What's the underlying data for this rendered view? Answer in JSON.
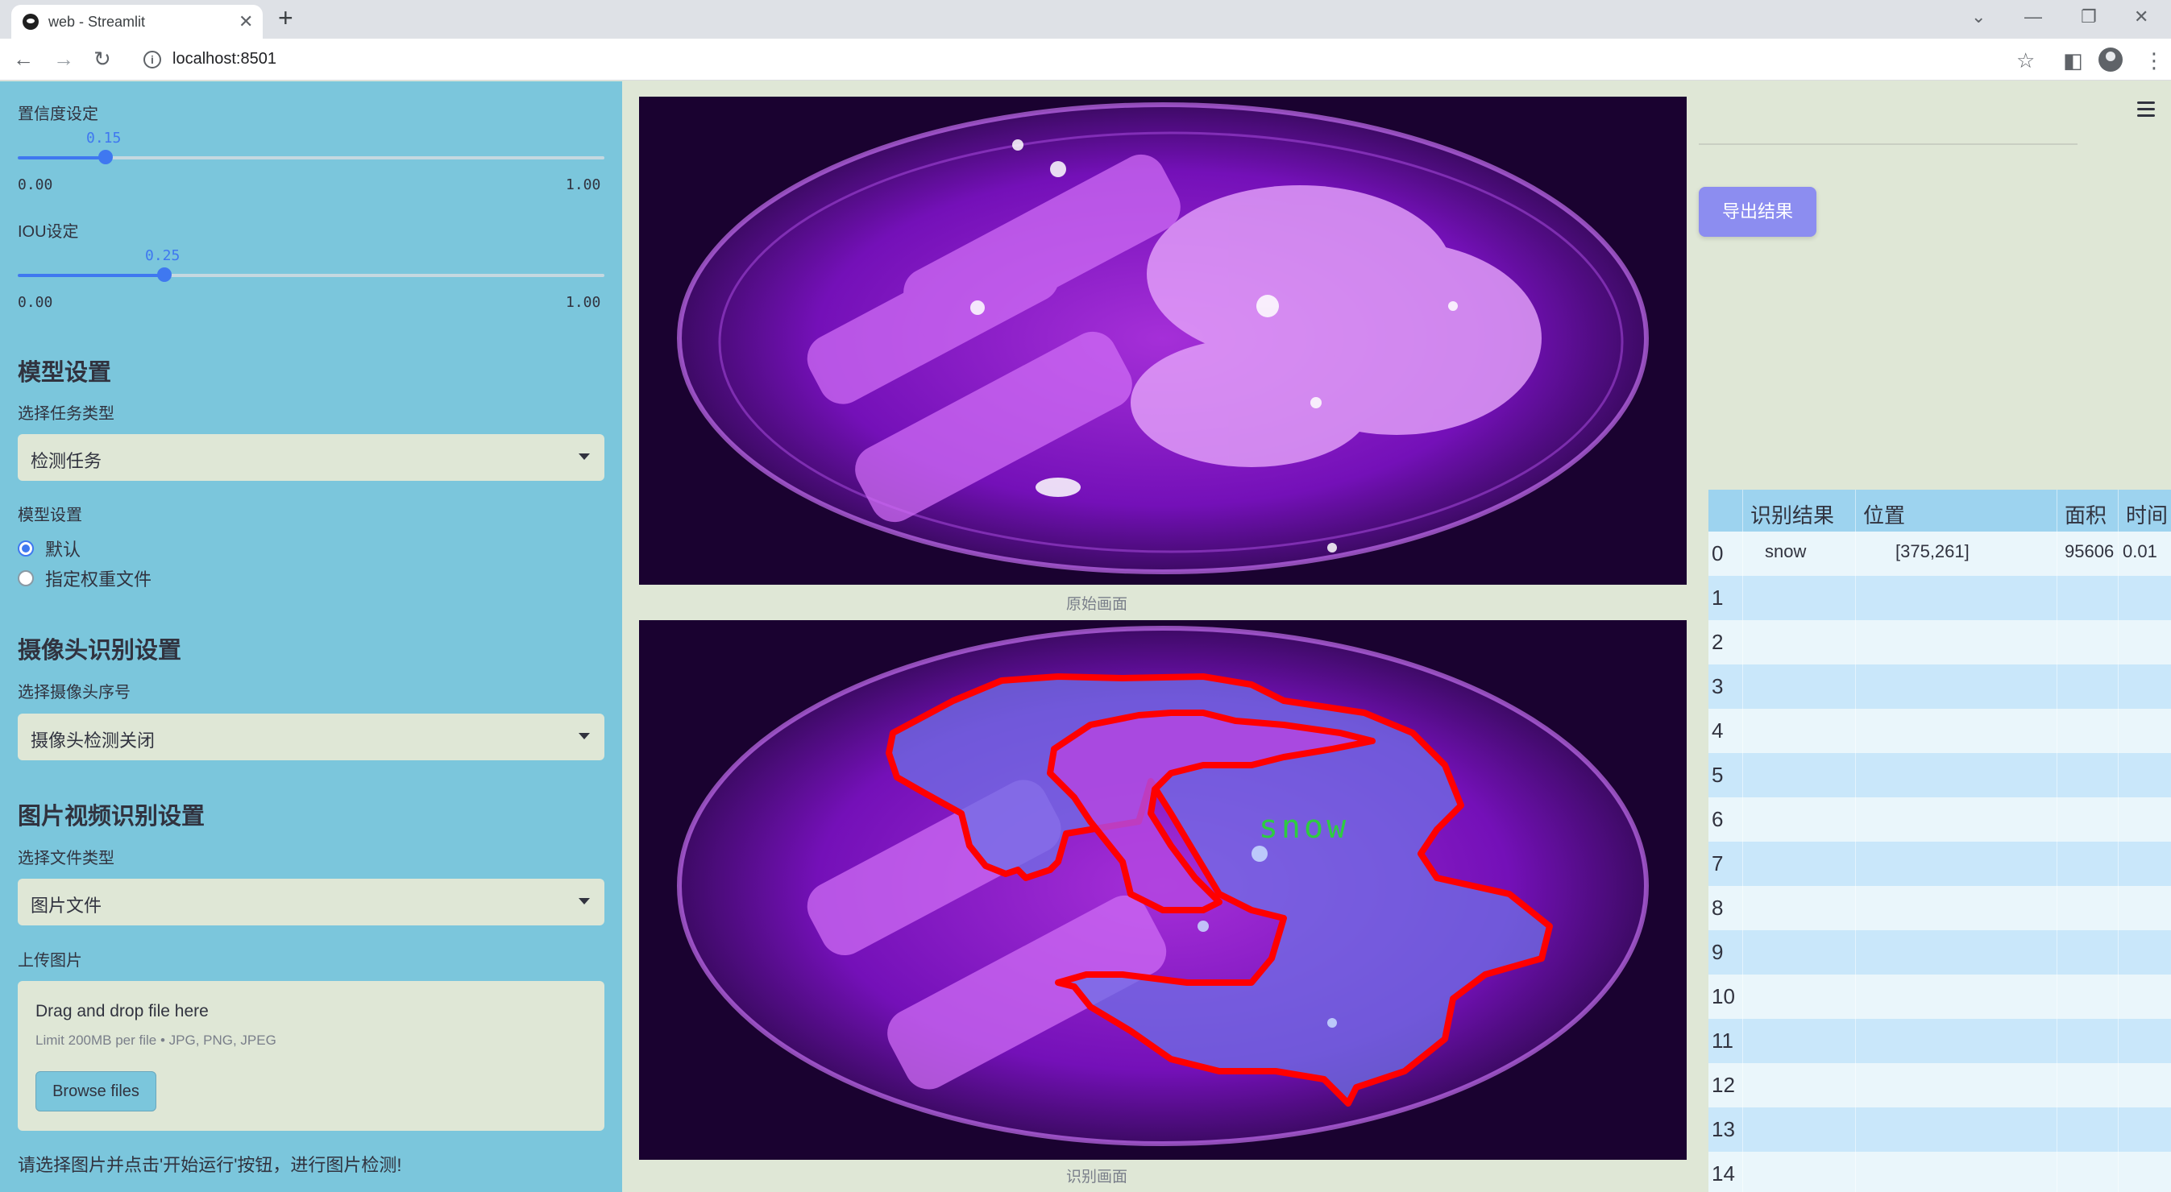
{
  "browser": {
    "tab_title": "web - Streamlit",
    "url": "localhost:8501"
  },
  "sidebar": {
    "confidence": {
      "label": "置信度设定",
      "value": "0.15",
      "min": "0.00",
      "max": "1.00",
      "fraction": 0.15
    },
    "iou": {
      "label": "IOU设定",
      "value": "0.25",
      "min": "0.00",
      "max": "1.00",
      "fraction": 0.25
    },
    "model_heading": "模型设置",
    "task_label": "选择任务类型",
    "task_value": "检测任务",
    "model_label": "模型设置",
    "model_options": [
      "默认",
      "指定权重文件"
    ],
    "model_selected": 0,
    "camera_heading": "摄像头识别设置",
    "camera_label": "选择摄像头序号",
    "camera_value": "摄像头检测关闭",
    "file_heading": "图片视频识别设置",
    "file_type_label": "选择文件类型",
    "file_type_value": "图片文件",
    "upload_label": "上传图片",
    "upload_title": "Drag and drop file here",
    "upload_limit": "Limit 200MB per file • JPG, PNG, JPEG",
    "browse_label": "Browse files",
    "status": "请选择图片并点击'开始运行'按钮，进行图片检测!"
  },
  "main": {
    "original_caption": "原始画面",
    "result_caption": "识别画面",
    "detection_label": "snow",
    "export_label": "导出结果"
  },
  "table": {
    "headers": [
      "识别结果",
      "位置",
      "面积",
      "时间"
    ],
    "rows": [
      {
        "index": "0",
        "result": "snow",
        "position": "[375,261]",
        "area": "95606",
        "time": "0.01"
      },
      {
        "index": "1"
      },
      {
        "index": "2"
      },
      {
        "index": "3"
      },
      {
        "index": "4"
      },
      {
        "index": "5"
      },
      {
        "index": "6"
      },
      {
        "index": "7"
      },
      {
        "index": "8"
      },
      {
        "index": "9"
      },
      {
        "index": "10"
      },
      {
        "index": "11"
      },
      {
        "index": "12"
      },
      {
        "index": "13"
      },
      {
        "index": "14"
      }
    ]
  },
  "colors": {
    "sidebar": "#7bc6dc",
    "accent": "#3f78f0",
    "export_button": "#8c8df0",
    "detection_outline": "#ff0000",
    "detection_label": "#2ecc40"
  },
  "icons": {
    "back": "arrow-left-icon",
    "forward": "arrow-right-icon",
    "reload": "reload-icon",
    "bookmark": "star-icon",
    "menu": "hamburger-icon"
  }
}
